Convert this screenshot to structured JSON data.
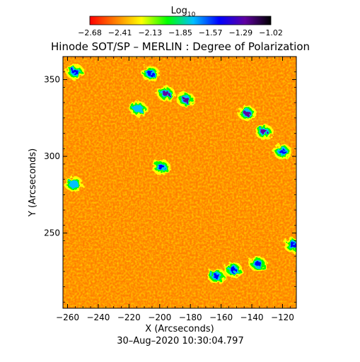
{
  "chart_data": {
    "type": "heatmap",
    "title": "Hinode SOT/SP – MERLIN : Degree of Polarization",
    "subtitle": "30–Aug–2020 10:30:04.797",
    "colorbar": {
      "label_base": "Log",
      "label_sub": "10",
      "ticks": [
        "−2.68",
        "−2.41",
        "−2.13",
        "−1.85",
        "−1.57",
        "−1.29",
        "−1.02"
      ],
      "range": [
        -2.68,
        -1.02
      ],
      "colors": [
        "#ff0000",
        "#ff8000",
        "#ffff00",
        "#00ff00",
        "#00c0ff",
        "#0000ff",
        "#6000a0",
        "#000000"
      ]
    },
    "xlabel": "X (Arcseconds)",
    "ylabel": "Y (Arcseconds)",
    "xlim": [
      -263,
      -111
    ],
    "ylim": [
      201,
      365
    ],
    "xticks": [
      {
        "value": -260,
        "label": "−260"
      },
      {
        "value": -240,
        "label": "−240"
      },
      {
        "value": -220,
        "label": "−220"
      },
      {
        "value": -200,
        "label": "−200"
      },
      {
        "value": -180,
        "label": "−180"
      },
      {
        "value": -160,
        "label": "−160"
      },
      {
        "value": -140,
        "label": "−140"
      },
      {
        "value": -120,
        "label": "−120"
      }
    ],
    "yticks": [
      {
        "value": 250,
        "label": "250"
      },
      {
        "value": 300,
        "label": "300"
      },
      {
        "value": 350,
        "label": "350"
      }
    ],
    "background_level": -2.55,
    "active_regions": [
      {
        "x": -255,
        "y": 355,
        "level": -1.5
      },
      {
        "x": -206,
        "y": 354,
        "level": -1.4
      },
      {
        "x": -196,
        "y": 341,
        "level": -1.3
      },
      {
        "x": -183,
        "y": 337,
        "level": -1.2
      },
      {
        "x": -214,
        "y": 331,
        "level": -1.7
      },
      {
        "x": -143,
        "y": 328,
        "level": -1.3
      },
      {
        "x": -132,
        "y": 316,
        "level": -1.3
      },
      {
        "x": -120,
        "y": 303,
        "level": -1.4
      },
      {
        "x": -199,
        "y": 293,
        "level": -1.5
      },
      {
        "x": -256,
        "y": 282,
        "level": -1.7
      },
      {
        "x": -113,
        "y": 242,
        "level": -1.5
      },
      {
        "x": -136,
        "y": 230,
        "level": -1.4
      },
      {
        "x": -152,
        "y": 226,
        "level": -1.5
      },
      {
        "x": -163,
        "y": 222,
        "level": -1.5
      }
    ]
  }
}
